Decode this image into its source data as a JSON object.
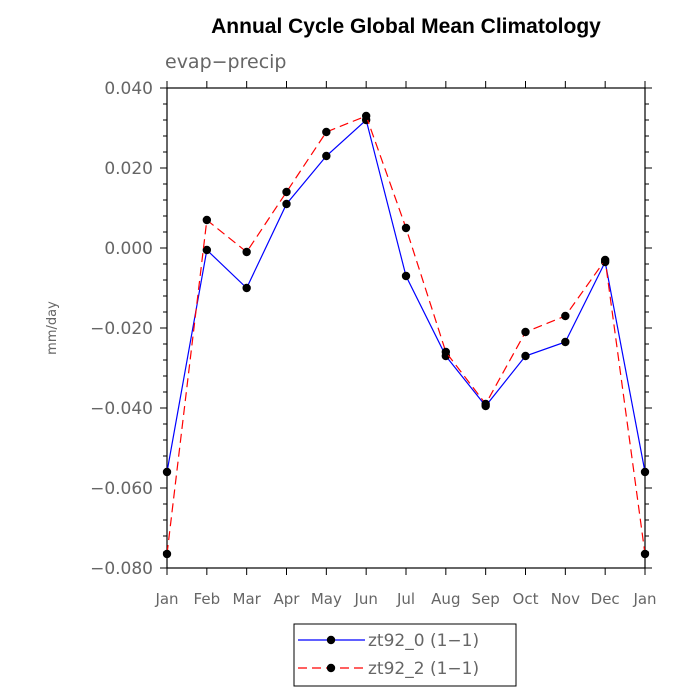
{
  "chart_data": {
    "type": "line",
    "title": "Annual Cycle Global Mean Climatology",
    "subtitle": "evap−precip",
    "xlabel": "",
    "ylabel": "mm/day",
    "categories": [
      "Jan",
      "Feb",
      "Mar",
      "Apr",
      "May",
      "Jun",
      "Jul",
      "Aug",
      "Sep",
      "Oct",
      "Nov",
      "Dec",
      "Jan"
    ],
    "ylim": [
      -0.08,
      0.04
    ],
    "yticks": [
      0.04,
      0.02,
      0.0,
      -0.02,
      -0.04,
      -0.06,
      -0.08
    ],
    "ytick_labels": [
      "0.040",
      "0.020",
      "0.000",
      "−0.020",
      "−0.040",
      "−0.060",
      "−0.080"
    ],
    "grid": false,
    "legend_position": "bottom-center",
    "series": [
      {
        "name": "zt92_0 (1−1)",
        "color": "#0000ff",
        "dash": "solid",
        "values": [
          -0.056,
          -0.0005,
          -0.01,
          0.011,
          0.023,
          0.032,
          -0.007,
          -0.027,
          -0.0395,
          -0.027,
          -0.0235,
          -0.0035,
          -0.056
        ]
      },
      {
        "name": "zt92_2 (1−1)",
        "color": "#ff0000",
        "dash": "dashed",
        "values": [
          -0.0765,
          0.007,
          -0.001,
          0.014,
          0.029,
          0.033,
          0.005,
          -0.026,
          -0.039,
          -0.021,
          -0.017,
          -0.003,
          -0.0765
        ]
      }
    ]
  }
}
